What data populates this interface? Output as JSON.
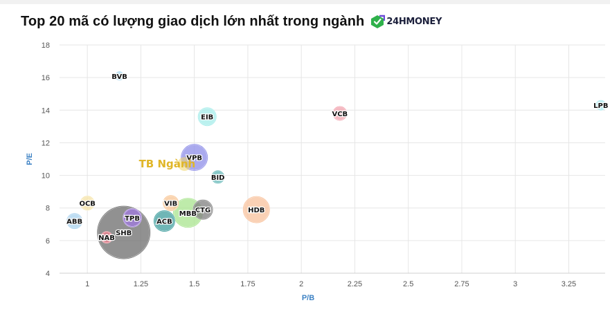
{
  "header": {
    "title": "Top 20 mã có lượng giao dịch lớn nhất trong ngành",
    "brand_text": "24HMONEY"
  },
  "chart_data": {
    "type": "bubble",
    "xlabel": "P/B",
    "ylabel": "P/E",
    "xlim": [
      0.87,
      3.42
    ],
    "ylim": [
      4,
      18
    ],
    "x_ticks": [
      1,
      1.25,
      1.5,
      1.75,
      2,
      2.25,
      2.5,
      2.75,
      3,
      3.25
    ],
    "y_ticks": [
      4,
      6,
      8,
      10,
      12,
      14,
      16,
      18
    ],
    "grid": true,
    "points": [
      {
        "label": "BVB",
        "x": 1.15,
        "y": 16.1,
        "r": 6,
        "color": "#9fd5f0"
      },
      {
        "label": "LPB",
        "x": 3.4,
        "y": 14.3,
        "r": 7,
        "color": "#a8e8ee"
      },
      {
        "label": "VCB",
        "x": 2.18,
        "y": 13.8,
        "r": 10,
        "color": "#f2a3ae"
      },
      {
        "label": "EIB",
        "x": 1.56,
        "y": 13.6,
        "r": 13,
        "color": "#a4ecea"
      },
      {
        "label": "VPB",
        "x": 1.5,
        "y": 11.1,
        "r": 19,
        "color": "#8e8ee8"
      },
      {
        "label": "BID",
        "x": 1.61,
        "y": 9.9,
        "r": 9,
        "color": "#5cb4b4"
      },
      {
        "label": "OCB",
        "x": 1.0,
        "y": 8.3,
        "r": 10,
        "color": "#f5e3a6"
      },
      {
        "label": "VIB",
        "x": 1.39,
        "y": 8.3,
        "r": 11,
        "color": "#f8c595"
      },
      {
        "label": "HDB",
        "x": 1.79,
        "y": 7.9,
        "r": 19,
        "color": "#f8c29c"
      },
      {
        "label": "CTG",
        "x": 1.54,
        "y": 7.9,
        "r": 14,
        "color": "#7f7f7f"
      },
      {
        "label": "MBB",
        "x": 1.47,
        "y": 7.7,
        "r": 21,
        "color": "#a8e48e"
      },
      {
        "label": "TPB",
        "x": 1.21,
        "y": 7.4,
        "r": 13,
        "color": "#a07ae0"
      },
      {
        "label": "ACB",
        "x": 1.36,
        "y": 7.2,
        "r": 15,
        "color": "#3f9e9e"
      },
      {
        "label": "ABB",
        "x": 0.94,
        "y": 7.2,
        "r": 11,
        "color": "#a8d2ee"
      },
      {
        "label": "SHB",
        "x": 1.17,
        "y": 6.5,
        "r": 38,
        "color": "#6c6c6c"
      },
      {
        "label": "NAB",
        "x": 1.09,
        "y": 6.2,
        "r": 8,
        "color": "#ef7d8c"
      }
    ],
    "average": {
      "label": "TB Ngành",
      "x": 1.47,
      "y": 10.7,
      "color": "#f1d66a"
    }
  }
}
